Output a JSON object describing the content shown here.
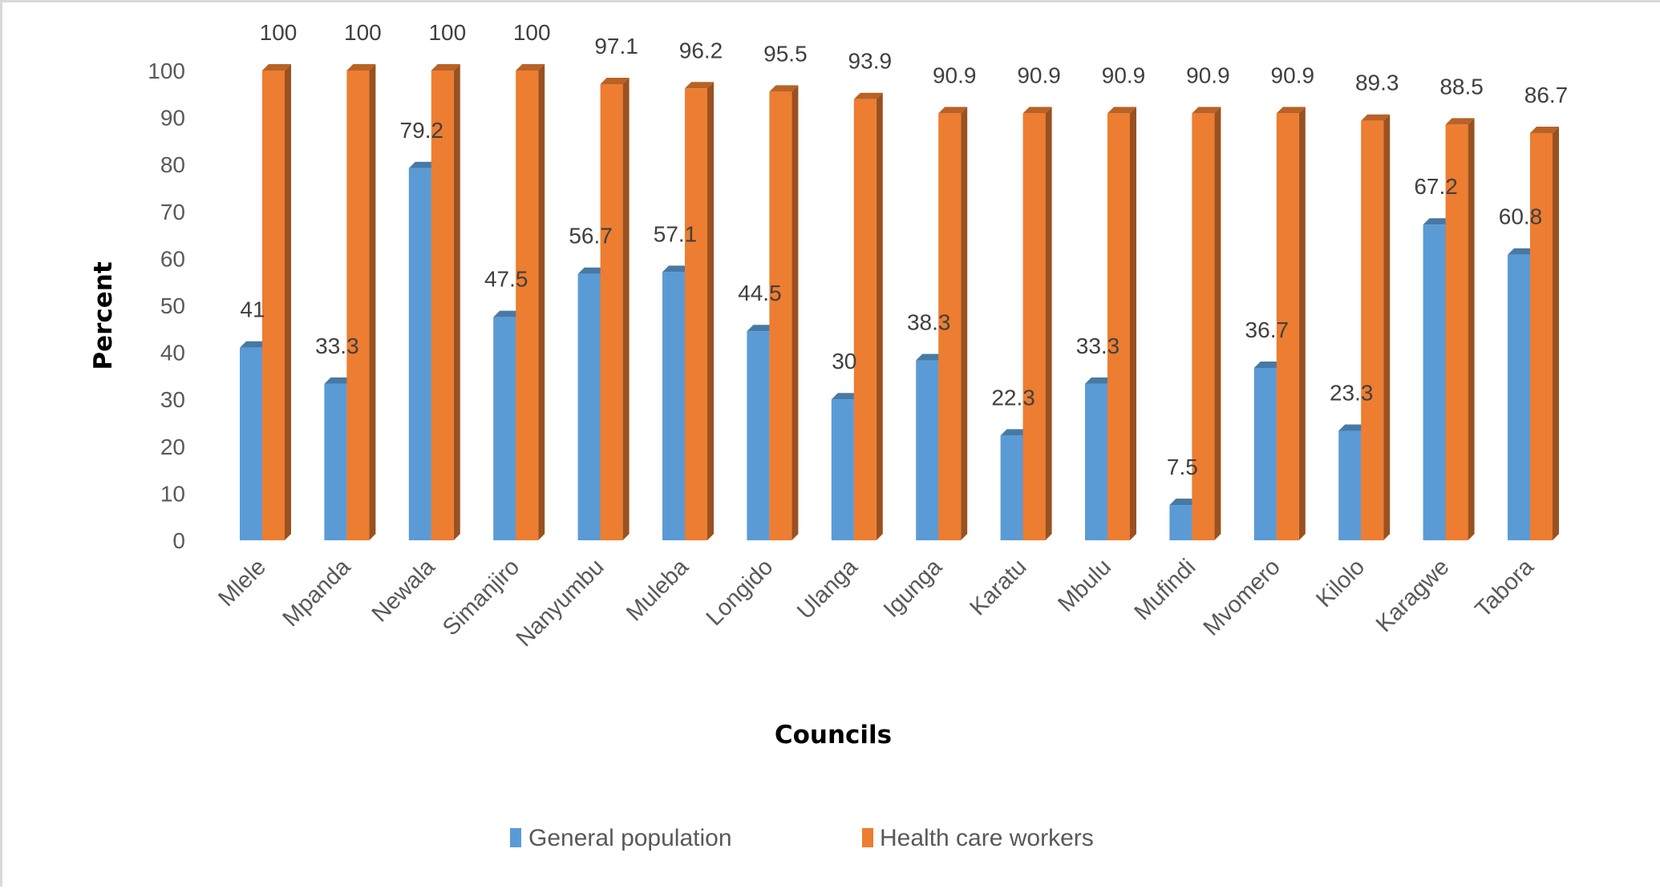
{
  "chart_data": {
    "type": "bar",
    "style": "3d-clustered-column",
    "title": "",
    "xlabel": "Councils",
    "ylabel": "Percent",
    "ylim": [
      0,
      100
    ],
    "yticks": [
      0,
      10,
      20,
      30,
      40,
      50,
      60,
      70,
      80,
      90,
      100
    ],
    "grid": false,
    "legend_position": "bottom",
    "categories": [
      "Mlele",
      "Mpanda",
      "Newala",
      "Simanjiro",
      "Nanyumbu",
      "Muleba",
      "Longido",
      "Ulanga",
      "Igunga",
      "Karatu",
      "Mbulu",
      "Mufindi",
      "Mvomero",
      "Kilolo",
      "Karagwe",
      "Tabora"
    ],
    "series": [
      {
        "name": "General population",
        "color": "#5b9bd5",
        "values": [
          41,
          33.3,
          79.2,
          47.5,
          56.7,
          57.1,
          44.5,
          30,
          38.3,
          22.3,
          33.3,
          7.5,
          36.7,
          23.3,
          67.2,
          60.8
        ],
        "labels": [
          "41",
          "33.3",
          "79.2",
          "47.5",
          "56.7",
          "57.1",
          "44.5",
          "30",
          "38.3",
          "22.3",
          "33.3",
          "7.5",
          "36.7",
          "23.3",
          "67.2",
          "60.8"
        ]
      },
      {
        "name": "Health care workers",
        "color": "#ed7d31",
        "values": [
          100,
          100,
          100,
          100,
          97.1,
          96.2,
          95.5,
          93.9,
          90.9,
          90.9,
          90.9,
          90.9,
          90.9,
          89.3,
          88.5,
          86.7
        ],
        "labels": [
          "100",
          "100",
          "100",
          "100",
          "97.1",
          "96.2",
          "95.5",
          "93.9",
          "90.9",
          "90.9",
          "90.9",
          "90.9",
          "90.9",
          "89.3",
          "88.5",
          "86.7"
        ]
      }
    ]
  }
}
